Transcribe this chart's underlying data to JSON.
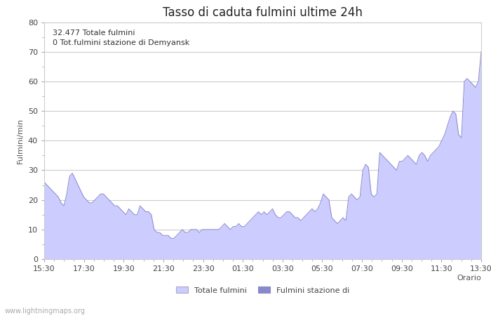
{
  "title": "Tasso di caduta fulmini ultime 24h",
  "xlabel": "Orario",
  "ylabel": "Fulmini/min",
  "ylim": [
    0,
    80
  ],
  "yticks": [
    0,
    10,
    20,
    30,
    40,
    50,
    60,
    70,
    80
  ],
  "xtick_labels": [
    "15:30",
    "17:30",
    "19:30",
    "21:30",
    "23:30",
    "01:30",
    "03:30",
    "05:30",
    "07:30",
    "09:30",
    "11:30",
    "13:30"
  ],
  "annotation_text": "32.477 Totale fulmini\n0 Tot.fulmini stazione di Demyansk",
  "legend_label1": "Totale fulmini",
  "legend_label2": "Fulmini stazione di",
  "fill_color1": "#ccccff",
  "fill_color2": "#8888cc",
  "watermark": "www.lightningmaps.org",
  "background_color": "#ffffff",
  "grid_color": "#cccccc",
  "title_fontsize": 12,
  "axis_label_fontsize": 8,
  "tick_fontsize": 8,
  "y_values": [
    26,
    25,
    24,
    23,
    22,
    21,
    19,
    18,
    22,
    28,
    29,
    27,
    25,
    23,
    21,
    20,
    19,
    19,
    20,
    21,
    22,
    22,
    21,
    20,
    19,
    18,
    18,
    17,
    16,
    15,
    17,
    16,
    15,
    15,
    18,
    17,
    16,
    16,
    15,
    10,
    9,
    9,
    8,
    8,
    8,
    7,
    7,
    8,
    9,
    10,
    9,
    9,
    10,
    10,
    10,
    9,
    10,
    10,
    10,
    10,
    10,
    10,
    10,
    11,
    12,
    11,
    10,
    11,
    11,
    12,
    11,
    11,
    12,
    13,
    14,
    15,
    16,
    15,
    16,
    15,
    16,
    17,
    15,
    14,
    14,
    15,
    16,
    16,
    15,
    14,
    14,
    13,
    14,
    15,
    16,
    17,
    16,
    17,
    19,
    22,
    21,
    20,
    14,
    13,
    12,
    13,
    14,
    13,
    21,
    22,
    21,
    20,
    21,
    30,
    32,
    31,
    22,
    21,
    22,
    36,
    35,
    34,
    33,
    32,
    31,
    30,
    33,
    33,
    34,
    35,
    34,
    33,
    32,
    35,
    36,
    35,
    33,
    35,
    36,
    37,
    38,
    40,
    42,
    45,
    48,
    50,
    49,
    42,
    41,
    60,
    61,
    60,
    59,
    58,
    60,
    70
  ]
}
